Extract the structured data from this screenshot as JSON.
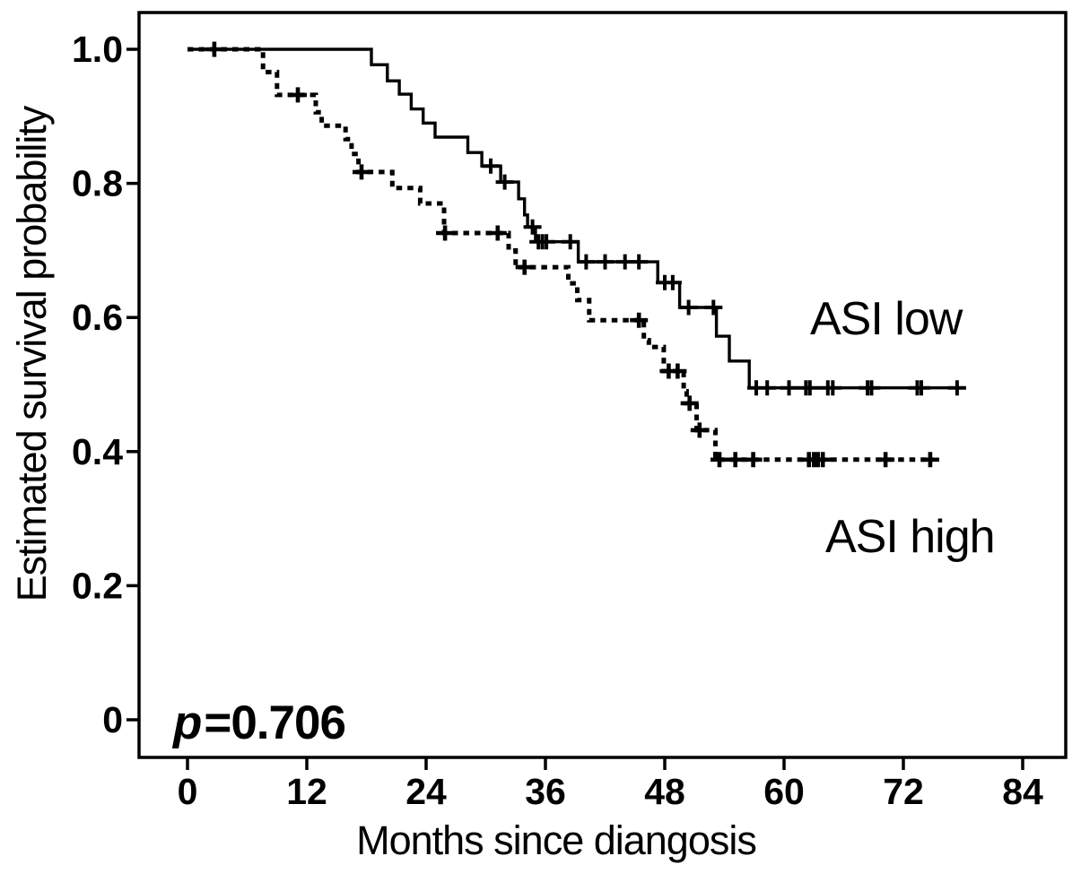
{
  "figure": {
    "y_axis_title": "Estimated survival probability",
    "x_axis_title": "Months since diangosis",
    "p_annotation": {
      "full_text": "p=0.706",
      "italic_part": "p",
      "rest": "=0.706"
    },
    "colors": {
      "ink": "#000000",
      "background": "#ffffff"
    }
  },
  "chart_data": {
    "type": "line",
    "subtype": "kaplan_meier_step",
    "title": "",
    "xlabel": "Months since diangosis",
    "ylabel": "Estimated survival probability",
    "xlim": [
      0,
      84
    ],
    "ylim": [
      0,
      1.0
    ],
    "grid": false,
    "legend": "inline text labels beside curves",
    "annotations": [
      {
        "text": "p=0.706",
        "position": "bottom-left"
      }
    ],
    "x_ticks": [
      {
        "value": 0,
        "label": "0"
      },
      {
        "value": 12,
        "label": "12"
      },
      {
        "value": 24,
        "label": "24"
      },
      {
        "value": 36,
        "label": "36"
      },
      {
        "value": 48,
        "label": "48"
      },
      {
        "value": 60,
        "label": "60"
      },
      {
        "value": 72,
        "label": "72"
      },
      {
        "value": 84,
        "label": "84"
      }
    ],
    "y_ticks": [
      {
        "value": 1.0,
        "label": "1.0"
      },
      {
        "value": 0.8,
        "label": "0.8"
      },
      {
        "value": 0.6,
        "label": "0.6"
      },
      {
        "value": 0.4,
        "label": "0.4"
      },
      {
        "value": 0.2,
        "label": "0.2"
      },
      {
        "value": 0.0,
        "label": "0"
      }
    ],
    "series": [
      {
        "name": "ASI low",
        "line_style": "solid",
        "label_position": "right-middle",
        "start": [
          0,
          1.0
        ],
        "steps": [
          [
            18.5,
            0.977
          ],
          [
            20.1,
            0.953
          ],
          [
            21.3,
            0.933
          ],
          [
            22.5,
            0.911
          ],
          [
            23.7,
            0.89
          ],
          [
            24.9,
            0.869
          ],
          [
            28.2,
            0.846
          ],
          [
            29.6,
            0.826
          ],
          [
            31.5,
            0.802
          ],
          [
            33.3,
            0.777
          ],
          [
            33.9,
            0.753
          ],
          [
            34.2,
            0.735
          ],
          [
            35.0,
            0.713
          ],
          [
            39.3,
            0.683
          ],
          [
            47.3,
            0.652
          ],
          [
            49.5,
            0.615
          ],
          [
            53.2,
            0.572
          ],
          [
            54.5,
            0.535
          ],
          [
            56.5,
            0.495
          ]
        ],
        "end_month": 78.1,
        "censor_marks": [
          [
            30.5,
            0.826
          ],
          [
            31.9,
            0.802
          ],
          [
            34.7,
            0.735
          ],
          [
            35.3,
            0.713
          ],
          [
            35.7,
            0.713
          ],
          [
            36.1,
            0.713
          ],
          [
            38.5,
            0.713
          ],
          [
            40.1,
            0.683
          ],
          [
            42.0,
            0.683
          ],
          [
            44.0,
            0.683
          ],
          [
            45.4,
            0.683
          ],
          [
            48.0,
            0.652
          ],
          [
            48.8,
            0.652
          ],
          [
            50.4,
            0.615
          ],
          [
            52.9,
            0.615
          ],
          [
            57.2,
            0.495
          ],
          [
            58.3,
            0.495
          ],
          [
            60.5,
            0.495
          ],
          [
            62.2,
            0.495
          ],
          [
            62.6,
            0.495
          ],
          [
            64.4,
            0.495
          ],
          [
            64.9,
            0.495
          ],
          [
            68.4,
            0.495
          ],
          [
            68.8,
            0.495
          ],
          [
            73.4,
            0.495
          ],
          [
            73.8,
            0.495
          ],
          [
            77.4,
            0.495
          ]
        ]
      },
      {
        "name": "ASI high",
        "line_style": "dashed",
        "label_position": "right-lower",
        "start": [
          0,
          1.0
        ],
        "steps": [
          [
            7.6,
            0.966
          ],
          [
            9.0,
            0.932
          ],
          [
            12.9,
            0.906
          ],
          [
            13.5,
            0.886
          ],
          [
            15.9,
            0.866
          ],
          [
            16.5,
            0.844
          ],
          [
            17.2,
            0.817
          ],
          [
            20.6,
            0.793
          ],
          [
            23.4,
            0.77
          ],
          [
            25.8,
            0.726
          ],
          [
            32.3,
            0.7
          ],
          [
            33.0,
            0.675
          ],
          [
            38.3,
            0.651
          ],
          [
            39.2,
            0.626
          ],
          [
            40.4,
            0.596
          ],
          [
            45.9,
            0.566
          ],
          [
            46.4,
            0.556
          ],
          [
            47.9,
            0.52
          ],
          [
            49.9,
            0.49
          ],
          [
            50.2,
            0.472
          ],
          [
            51.2,
            0.432
          ],
          [
            53.1,
            0.388
          ]
        ],
        "end_month": 75.0,
        "censor_marks": [
          [
            2.7,
            1.0
          ],
          [
            11.1,
            0.932
          ],
          [
            17.5,
            0.817
          ],
          [
            25.9,
            0.726
          ],
          [
            31.2,
            0.726
          ],
          [
            33.9,
            0.675
          ],
          [
            45.4,
            0.596
          ],
          [
            48.4,
            0.52
          ],
          [
            49.3,
            0.52
          ],
          [
            50.5,
            0.472
          ],
          [
            51.5,
            0.432
          ],
          [
            53.5,
            0.388
          ],
          [
            55.1,
            0.388
          ],
          [
            56.9,
            0.388
          ],
          [
            62.5,
            0.388
          ],
          [
            63.0,
            0.388
          ],
          [
            63.4,
            0.388
          ],
          [
            63.9,
            0.388
          ],
          [
            70.2,
            0.388
          ],
          [
            74.7,
            0.388
          ]
        ]
      }
    ]
  }
}
